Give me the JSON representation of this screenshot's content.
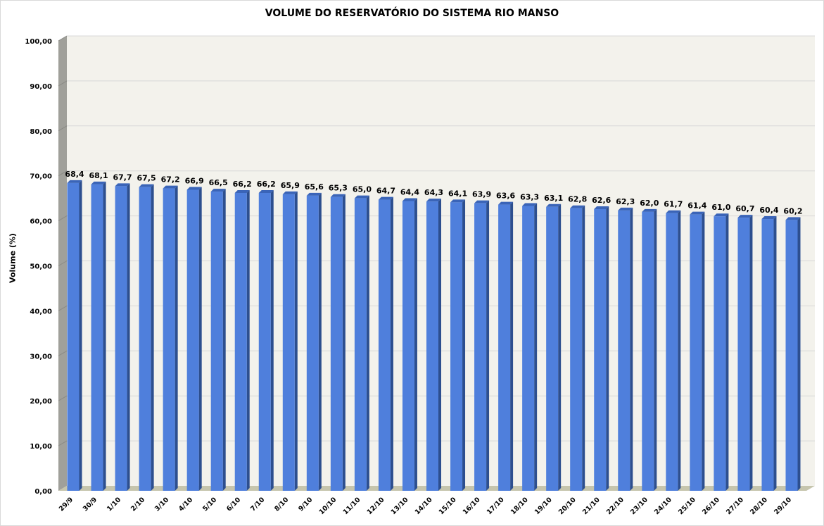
{
  "chart_data": {
    "type": "bar",
    "title": "VOLUME DO RESERVATÓRIO DO SISTEMA RIO MANSO",
    "xlabel": "",
    "ylabel": "Volume (%)",
    "ylim": [
      0,
      100
    ],
    "yticks": [
      "0,00",
      "10,00",
      "20,00",
      "30,00",
      "40,00",
      "50,00",
      "60,00",
      "70,00",
      "80,00",
      "90,00",
      "100,00"
    ],
    "grid": true,
    "style": "3d-column",
    "categories": [
      "29/9",
      "30/9",
      "1/10",
      "2/10",
      "3/10",
      "4/10",
      "5/10",
      "6/10",
      "7/10",
      "8/10",
      "9/10",
      "10/10",
      "11/10",
      "12/10",
      "13/10",
      "14/10",
      "15/10",
      "16/10",
      "17/10",
      "18/10",
      "19/10",
      "20/10",
      "21/10",
      "22/10",
      "23/10",
      "24/10",
      "25/10",
      "26/10",
      "27/10",
      "28/10",
      "29/10"
    ],
    "values": [
      68.4,
      68.1,
      67.7,
      67.5,
      67.2,
      66.9,
      66.5,
      66.2,
      66.2,
      65.9,
      65.6,
      65.3,
      65.0,
      64.7,
      64.4,
      64.3,
      64.1,
      63.9,
      63.6,
      63.3,
      63.1,
      62.8,
      62.6,
      62.3,
      62.0,
      61.7,
      61.4,
      61.0,
      60.7,
      60.4,
      60.2
    ],
    "data_labels": [
      "68,4",
      "68,1",
      "67,7",
      "67,5",
      "67,2",
      "66,9",
      "66,5",
      "66,2",
      "66,2",
      "65,9",
      "65,6",
      "65,3",
      "65,0",
      "64,7",
      "64,4",
      "64,3",
      "64,1",
      "63,9",
      "63,6",
      "63,3",
      "63,1",
      "62,8",
      "62,6",
      "62,3",
      "62,0",
      "61,7",
      "61,4",
      "61,0",
      "60,7",
      "60,4",
      "60,2"
    ],
    "colors": {
      "bar_front": "#4f7fdc",
      "bar_side": "#2d4f8f",
      "bar_top": "#3a64b8",
      "wall": "#f3f2ec",
      "side_wall": "#a0a09a",
      "floor": "#c6c5ad",
      "grid": "#d8d8d8"
    }
  }
}
